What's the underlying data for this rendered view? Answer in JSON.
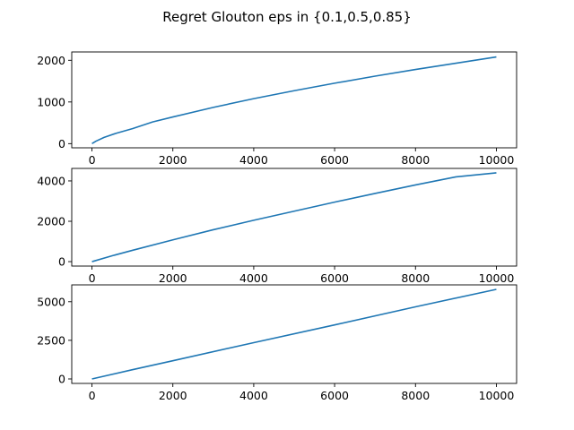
{
  "figure": {
    "title": "Regret Glouton eps in {0.1,0.5,0.85}",
    "line_color": "#1f77b4"
  },
  "chart_data": [
    {
      "type": "line",
      "title": "",
      "xlabel": "",
      "ylabel": "",
      "xlim": [
        -500,
        10500
      ],
      "ylim": [
        -100,
        2200
      ],
      "xticks": [
        0,
        2000,
        4000,
        6000,
        8000,
        10000
      ],
      "yticks": [
        0,
        1000,
        2000
      ],
      "x": [
        0,
        100,
        300,
        600,
        1000,
        1500,
        2000,
        3000,
        4000,
        5000,
        6000,
        7000,
        8000,
        9000,
        10000
      ],
      "series": [
        {
          "values": [
            0,
            60,
            150,
            250,
            360,
            520,
            640,
            870,
            1080,
            1270,
            1450,
            1620,
            1780,
            1930,
            2080
          ]
        }
      ]
    },
    {
      "type": "line",
      "title": "",
      "xlabel": "",
      "ylabel": "",
      "xlim": [
        -500,
        10500
      ],
      "ylim": [
        -220,
        4620
      ],
      "xticks": [
        0,
        2000,
        4000,
        6000,
        8000,
        10000
      ],
      "yticks": [
        0,
        2000,
        4000
      ],
      "x": [
        0,
        500,
        1000,
        2000,
        3000,
        4000,
        5000,
        6000,
        7000,
        8000,
        9000,
        10000
      ],
      "series": [
        {
          "values": [
            0,
            290,
            560,
            1080,
            1580,
            2050,
            2500,
            2950,
            3380,
            3800,
            4200,
            4400
          ]
        }
      ]
    },
    {
      "type": "line",
      "title": "",
      "xlabel": "",
      "ylabel": "",
      "xlim": [
        -500,
        10500
      ],
      "ylim": [
        -290,
        6090
      ],
      "xticks": [
        0,
        2000,
        4000,
        6000,
        8000,
        10000
      ],
      "yticks": [
        0,
        2500,
        5000
      ],
      "x": [
        0,
        1000,
        2000,
        4000,
        6000,
        8000,
        10000
      ],
      "series": [
        {
          "values": [
            0,
            600,
            1180,
            2350,
            3500,
            4670,
            5800
          ]
        }
      ]
    }
  ]
}
